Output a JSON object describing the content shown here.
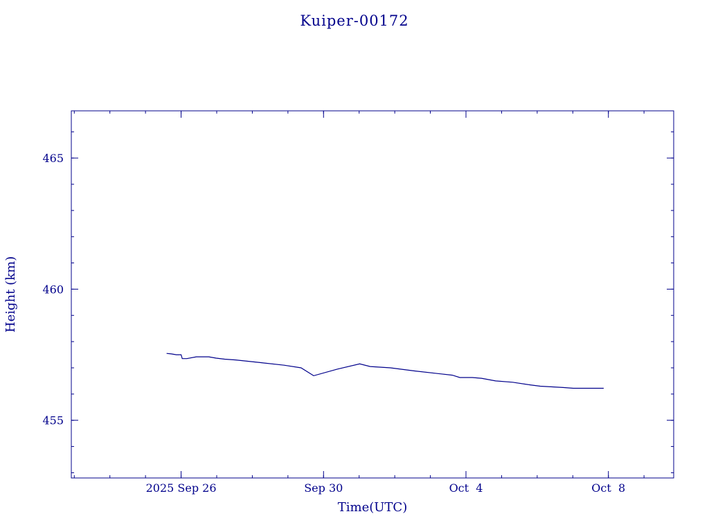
{
  "colors": {
    "foreground": "#00008b",
    "background": "#ffffff"
  },
  "chart_data": {
    "type": "line",
    "title": "Kuiper-00172",
    "xlabel": "Time(UTC)",
    "ylabel": "Height (km)",
    "x_axis": {
      "unit": "days",
      "range": [
        "2025-09-22T22:00",
        "2025-10-09T20:00"
      ],
      "major_ticks": [
        {
          "date": "2025-09-26",
          "label": "2025 Sep 26"
        },
        {
          "date": "2025-09-30",
          "label": "Sep 30"
        },
        {
          "date": "2025-10-04",
          "label": "Oct  4"
        },
        {
          "date": "2025-10-08",
          "label": "Oct  8"
        }
      ],
      "minor_tick_days": 1
    },
    "y_axis": {
      "range": [
        452.8,
        466.8
      ],
      "major_ticks": [
        455,
        460,
        465
      ],
      "tick_labels": [
        "455",
        "460",
        "465"
      ],
      "minor_tick_step": 1
    },
    "grid": false,
    "series": [
      {
        "points": [
          {
            "t": "2025-09-25T14:14",
            "y": 457.55
          },
          {
            "t": "2025-09-25T17:24",
            "y": 457.53
          },
          {
            "t": "2025-09-25T20:48",
            "y": 457.5
          },
          {
            "t": "2025-09-26T00:00",
            "y": 457.5
          },
          {
            "t": "2025-09-26T00:46",
            "y": 457.35
          },
          {
            "t": "2025-09-26T03:50",
            "y": 457.35
          },
          {
            "t": "2025-09-26T10:18",
            "y": 457.42
          },
          {
            "t": "2025-09-26T18:39",
            "y": 457.42
          },
          {
            "t": "2025-09-26T23:34",
            "y": 457.37
          },
          {
            "t": "2025-09-27T05:23",
            "y": 457.33
          },
          {
            "t": "2025-09-27T12:43",
            "y": 457.3
          },
          {
            "t": "2025-09-28T05:12",
            "y": 457.2
          },
          {
            "t": "2025-09-28T21:22",
            "y": 457.1
          },
          {
            "t": "2025-09-29T08:50",
            "y": 457.0
          },
          {
            "t": "2025-09-29T17:19",
            "y": 456.7
          },
          {
            "t": "2025-09-30T09:12",
            "y": 456.95
          },
          {
            "t": "2025-10-01T00:21",
            "y": 457.15
          },
          {
            "t": "2025-10-01T07:26",
            "y": 457.05
          },
          {
            "t": "2025-10-01T21:05",
            "y": 457.0
          },
          {
            "t": "2025-10-02T13:21",
            "y": 456.88
          },
          {
            "t": "2025-10-03T05:08",
            "y": 456.78
          },
          {
            "t": "2025-10-03T14:47",
            "y": 456.72
          },
          {
            "t": "2025-10-03T19:52",
            "y": 456.63
          },
          {
            "t": "2025-10-04T04:18",
            "y": 456.63
          },
          {
            "t": "2025-10-04T10:30",
            "y": 456.6
          },
          {
            "t": "2025-10-04T19:57",
            "y": 456.5
          },
          {
            "t": "2025-10-05T07:26",
            "y": 456.45
          },
          {
            "t": "2025-10-05T19:12",
            "y": 456.35
          },
          {
            "t": "2025-10-06T02:02",
            "y": 456.3
          },
          {
            "t": "2025-10-06T17:26",
            "y": 456.25
          },
          {
            "t": "2025-10-07T00:21",
            "y": 456.22
          },
          {
            "t": "2025-10-07T20:48",
            "y": 456.22
          }
        ]
      }
    ]
  }
}
